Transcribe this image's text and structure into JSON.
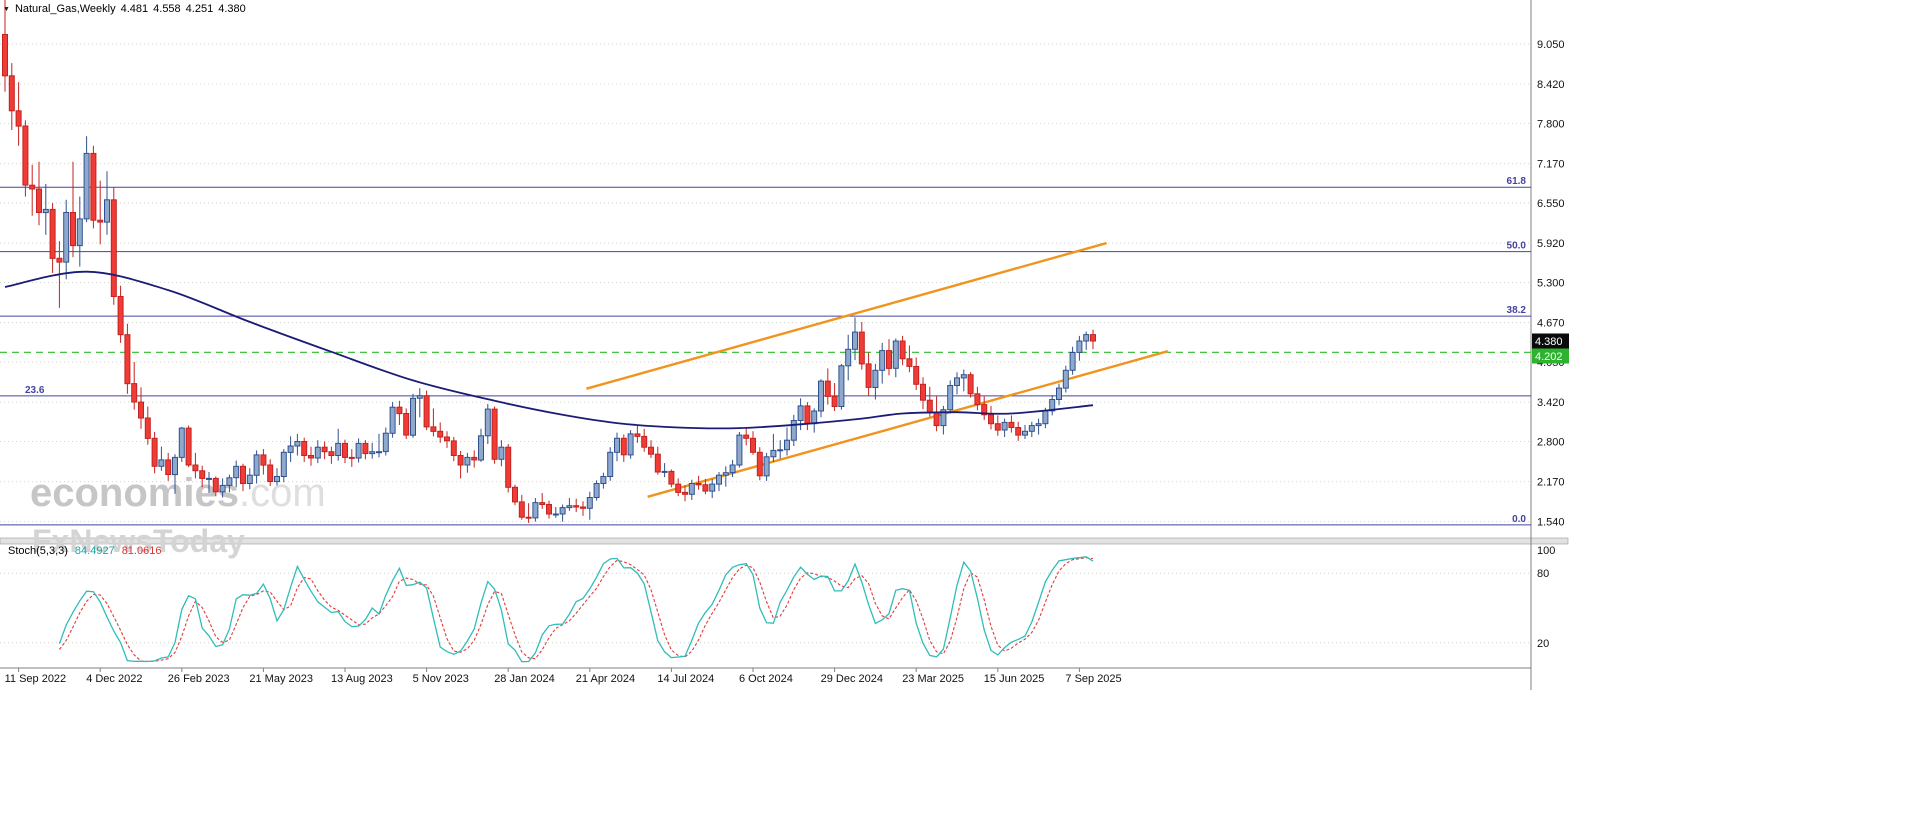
{
  "title": {
    "marker": "▼",
    "symbol_period": "Natural_Gas,Weekly",
    "open": "4.481",
    "high": "4.558",
    "low": "4.251",
    "close": "4.380"
  },
  "watermark": {
    "brand": "economies",
    "brand_suffix": ".com",
    "subbrand": "FxNewsToday"
  },
  "price_axis": {
    "labels": [
      "9.050",
      "8.420",
      "7.800",
      "7.170",
      "6.550",
      "5.920",
      "5.300",
      "4.670",
      "4.050",
      "3.420",
      "2.800",
      "2.170",
      "1.540"
    ],
    "current_price_tag": {
      "text": "4.380",
      "bg": "#0a0a0a",
      "fg": "#ffffff"
    },
    "alert_tag": {
      "text": "4.202",
      "bg": "#2db32d",
      "fg": "#ffffff"
    }
  },
  "time_axis": {
    "labels": [
      {
        "index": 2,
        "text": "11 Sep 2022"
      },
      {
        "index": 14,
        "text": "4 Dec 2022"
      },
      {
        "index": 26,
        "text": "26 Feb 2023"
      },
      {
        "index": 38,
        "text": "21 May 2023"
      },
      {
        "index": 50,
        "text": "13 Aug 2023"
      },
      {
        "index": 62,
        "text": "5 Nov 2023"
      },
      {
        "index": 74,
        "text": "28 Jan 2024"
      },
      {
        "index": 86,
        "text": "21 Apr 2024"
      },
      {
        "index": 98,
        "text": "14 Jul 2024"
      },
      {
        "index": 110,
        "text": "6 Oct 2024"
      },
      {
        "index": 122,
        "text": "29 Dec 2024"
      },
      {
        "index": 134,
        "text": "23 Mar 2025"
      },
      {
        "index": 146,
        "text": "15 Jun 2025"
      },
      {
        "index": 158,
        "text": "7 Sep 2025"
      }
    ]
  },
  "indicator_header": {
    "name": "Stoch(5,3,3)",
    "k_value": "84.4927",
    "d_value": "81.0616"
  },
  "colors": {
    "grid": "#ccd6cc",
    "bull_fill": "#8fa9cc",
    "bull_stroke": "#30508f",
    "bear_fill": "#f03c36",
    "bear_stroke": "#c42220",
    "ma": "#1b1b78",
    "fib": "#4444a0",
    "channel": "#f0941e",
    "alert": "#2db82d",
    "k_line": "#2fbdb8",
    "d_line": "#e23b3b",
    "axis_text": "#111111",
    "watermark_brand": "#c6c6c6",
    "watermark_suffix": "#dedede",
    "watermark_sub": "#d4d4d4"
  },
  "chart_data": {
    "type": "candlestick",
    "symbol": "Natural_Gas",
    "timeframe": "Weekly",
    "title": "Natural_Gas,Weekly 4.481 4.558 4.251 4.380",
    "y_axis": {
      "min": 1.54,
      "max": 9.05,
      "tick_step": 0.625
    },
    "current_price": 4.38,
    "alert_line_price": 4.202,
    "ohlc": [
      [
        9.2,
        10.0,
        8.3,
        8.55
      ],
      [
        8.55,
        8.75,
        7.7,
        8.0
      ],
      [
        8.0,
        8.45,
        7.45,
        7.76
      ],
      [
        7.76,
        7.85,
        6.65,
        6.83
      ],
      [
        6.83,
        7.15,
        6.35,
        6.77
      ],
      [
        6.77,
        7.2,
        6.2,
        6.4
      ],
      [
        6.4,
        6.85,
        6.05,
        6.45
      ],
      [
        6.45,
        6.55,
        5.45,
        5.68
      ],
      [
        5.68,
        5.95,
        4.9,
        5.62
      ],
      [
        5.62,
        6.6,
        5.35,
        6.4
      ],
      [
        6.4,
        7.2,
        5.7,
        5.88
      ],
      [
        5.88,
        6.65,
        5.55,
        6.3
      ],
      [
        6.3,
        7.6,
        6.25,
        7.33
      ],
      [
        7.33,
        7.45,
        6.15,
        6.28
      ],
      [
        6.28,
        6.9,
        5.9,
        6.25
      ],
      [
        6.25,
        7.05,
        6.05,
        6.6
      ],
      [
        6.6,
        6.8,
        4.95,
        5.08
      ],
      [
        5.08,
        5.25,
        4.35,
        4.48
      ],
      [
        4.48,
        4.65,
        3.55,
        3.71
      ],
      [
        3.71,
        4.05,
        3.3,
        3.42
      ],
      [
        3.42,
        3.65,
        3.0,
        3.17
      ],
      [
        3.17,
        3.35,
        2.75,
        2.85
      ],
      [
        2.85,
        2.95,
        2.3,
        2.41
      ],
      [
        2.41,
        2.72,
        2.34,
        2.51
      ],
      [
        2.51,
        2.62,
        2.18,
        2.28
      ],
      [
        2.28,
        2.6,
        1.98,
        2.55
      ],
      [
        2.55,
        3.03,
        2.48,
        3.01
      ],
      [
        3.01,
        3.05,
        2.4,
        2.43
      ],
      [
        2.43,
        2.62,
        2.22,
        2.34
      ],
      [
        2.34,
        2.42,
        2.08,
        2.22
      ],
      [
        2.22,
        2.32,
        1.99,
        2.22
      ],
      [
        2.22,
        2.25,
        1.94,
        2.01
      ],
      [
        2.01,
        2.22,
        1.92,
        2.11
      ],
      [
        2.11,
        2.28,
        2.0,
        2.23
      ],
      [
        2.23,
        2.5,
        2.08,
        2.41
      ],
      [
        2.41,
        2.45,
        2.02,
        2.14
      ],
      [
        2.14,
        2.38,
        2.05,
        2.27
      ],
      [
        2.27,
        2.66,
        2.14,
        2.59
      ],
      [
        2.59,
        2.68,
        2.28,
        2.43
      ],
      [
        2.43,
        2.52,
        2.1,
        2.17
      ],
      [
        2.17,
        2.38,
        2.11,
        2.25
      ],
      [
        2.25,
        2.68,
        2.16,
        2.63
      ],
      [
        2.63,
        2.88,
        2.48,
        2.73
      ],
      [
        2.73,
        2.92,
        2.58,
        2.8
      ],
      [
        2.8,
        2.86,
        2.48,
        2.58
      ],
      [
        2.58,
        2.72,
        2.42,
        2.54
      ],
      [
        2.54,
        2.82,
        2.46,
        2.71
      ],
      [
        2.71,
        2.8,
        2.52,
        2.64
      ],
      [
        2.64,
        2.72,
        2.45,
        2.58
      ],
      [
        2.58,
        3.0,
        2.5,
        2.77
      ],
      [
        2.77,
        2.83,
        2.46,
        2.55
      ],
      [
        2.55,
        2.68,
        2.4,
        2.54
      ],
      [
        2.54,
        2.85,
        2.47,
        2.77
      ],
      [
        2.77,
        2.82,
        2.52,
        2.61
      ],
      [
        2.61,
        2.78,
        2.53,
        2.64
      ],
      [
        2.64,
        2.92,
        2.55,
        2.64
      ],
      [
        2.64,
        3.02,
        2.58,
        2.93
      ],
      [
        2.93,
        3.42,
        2.86,
        3.34
      ],
      [
        3.34,
        3.44,
        3.06,
        3.24
      ],
      [
        3.24,
        3.32,
        2.84,
        2.9
      ],
      [
        2.9,
        3.55,
        2.86,
        3.48
      ],
      [
        3.48,
        3.64,
        3.18,
        3.52
      ],
      [
        3.52,
        3.6,
        2.98,
        3.03
      ],
      [
        3.03,
        3.32,
        2.88,
        2.96
      ],
      [
        2.96,
        3.1,
        2.78,
        2.87
      ],
      [
        2.87,
        2.96,
        2.7,
        2.81
      ],
      [
        2.81,
        2.87,
        2.49,
        2.58
      ],
      [
        2.58,
        2.65,
        2.22,
        2.43
      ],
      [
        2.43,
        2.62,
        2.31,
        2.55
      ],
      [
        2.55,
        2.66,
        2.39,
        2.51
      ],
      [
        2.51,
        3.0,
        2.48,
        2.89
      ],
      [
        2.89,
        3.39,
        2.76,
        3.31
      ],
      [
        3.31,
        3.35,
        2.45,
        2.52
      ],
      [
        2.52,
        2.82,
        2.41,
        2.71
      ],
      [
        2.71,
        2.76,
        2.0,
        2.08
      ],
      [
        2.08,
        2.12,
        1.8,
        1.85
      ],
      [
        1.85,
        1.96,
        1.57,
        1.61
      ],
      [
        1.61,
        1.83,
        1.52,
        1.6
      ],
      [
        1.6,
        1.91,
        1.54,
        1.84
      ],
      [
        1.84,
        1.99,
        1.74,
        1.81
      ],
      [
        1.81,
        1.87,
        1.59,
        1.66
      ],
      [
        1.66,
        1.77,
        1.6,
        1.66
      ],
      [
        1.66,
        1.81,
        1.54,
        1.76
      ],
      [
        1.76,
        1.91,
        1.71,
        1.79
      ],
      [
        1.79,
        1.9,
        1.69,
        1.77
      ],
      [
        1.77,
        1.86,
        1.63,
        1.75
      ],
      [
        1.75,
        2.01,
        1.57,
        1.92
      ],
      [
        1.92,
        2.19,
        1.87,
        2.14
      ],
      [
        2.14,
        2.31,
        2.06,
        2.25
      ],
      [
        2.25,
        2.71,
        2.18,
        2.63
      ],
      [
        2.63,
        2.94,
        2.49,
        2.85
      ],
      [
        2.85,
        2.91,
        2.48,
        2.59
      ],
      [
        2.59,
        2.98,
        2.53,
        2.92
      ],
      [
        2.92,
        3.06,
        2.78,
        2.88
      ],
      [
        2.88,
        3.0,
        2.64,
        2.71
      ],
      [
        2.71,
        2.82,
        2.54,
        2.6
      ],
      [
        2.6,
        2.72,
        2.28,
        2.32
      ],
      [
        2.32,
        2.46,
        2.24,
        2.33
      ],
      [
        2.33,
        2.36,
        2.08,
        2.13
      ],
      [
        2.13,
        2.22,
        1.94,
        2.0
      ],
      [
        2.0,
        2.11,
        1.86,
        1.97
      ],
      [
        1.97,
        2.2,
        1.88,
        2.14
      ],
      [
        2.14,
        2.26,
        2.04,
        2.12
      ],
      [
        2.12,
        2.21,
        1.97,
        2.02
      ],
      [
        2.02,
        2.21,
        1.91,
        2.13
      ],
      [
        2.13,
        2.32,
        2.02,
        2.27
      ],
      [
        2.27,
        2.41,
        2.09,
        2.31
      ],
      [
        2.31,
        2.51,
        2.24,
        2.43
      ],
      [
        2.43,
        2.95,
        2.39,
        2.9
      ],
      [
        2.9,
        3.02,
        2.74,
        2.85
      ],
      [
        2.85,
        2.96,
        2.59,
        2.63
      ],
      [
        2.63,
        2.71,
        2.19,
        2.26
      ],
      [
        2.26,
        2.62,
        2.18,
        2.56
      ],
      [
        2.56,
        2.92,
        2.48,
        2.66
      ],
      [
        2.66,
        2.82,
        2.53,
        2.67
      ],
      [
        2.67,
        3.02,
        2.58,
        2.82
      ],
      [
        2.82,
        3.22,
        2.73,
        3.13
      ],
      [
        3.13,
        3.48,
        2.98,
        3.36
      ],
      [
        3.36,
        3.42,
        2.98,
        3.08
      ],
      [
        3.08,
        3.32,
        2.94,
        3.28
      ],
      [
        3.28,
        3.78,
        3.18,
        3.75
      ],
      [
        3.75,
        3.95,
        3.38,
        3.51
      ],
      [
        3.51,
        3.72,
        3.28,
        3.35
      ],
      [
        3.35,
        4.02,
        3.3,
        3.99
      ],
      [
        3.99,
        4.48,
        3.76,
        4.25
      ],
      [
        4.25,
        4.75,
        4.08,
        4.52
      ],
      [
        4.52,
        4.68,
        3.93,
        4.02
      ],
      [
        4.02,
        4.2,
        3.52,
        3.65
      ],
      [
        3.65,
        4.02,
        3.46,
        3.92
      ],
      [
        3.92,
        4.35,
        3.71,
        4.23
      ],
      [
        4.23,
        4.41,
        3.84,
        3.95
      ],
      [
        3.95,
        4.42,
        3.81,
        4.38
      ],
      [
        4.38,
        4.46,
        4.0,
        4.1
      ],
      [
        4.1,
        4.31,
        3.89,
        3.98
      ],
      [
        3.98,
        4.12,
        3.61,
        3.7
      ],
      [
        3.7,
        3.81,
        3.31,
        3.45
      ],
      [
        3.45,
        3.66,
        3.19,
        3.25
      ],
      [
        3.25,
        3.51,
        2.96,
        3.05
      ],
      [
        3.05,
        3.36,
        2.91,
        3.3
      ],
      [
        3.3,
        3.76,
        3.24,
        3.68
      ],
      [
        3.68,
        3.89,
        3.54,
        3.8
      ],
      [
        3.8,
        3.93,
        3.59,
        3.85
      ],
      [
        3.85,
        3.89,
        3.49,
        3.55
      ],
      [
        3.55,
        3.66,
        3.29,
        3.38
      ],
      [
        3.38,
        3.51,
        3.14,
        3.22
      ],
      [
        3.22,
        3.36,
        2.99,
        3.08
      ],
      [
        3.08,
        3.21,
        2.89,
        2.98
      ],
      [
        2.98,
        3.16,
        2.87,
        3.1
      ],
      [
        3.1,
        3.21,
        2.94,
        3.02
      ],
      [
        3.02,
        3.11,
        2.81,
        2.9
      ],
      [
        2.9,
        3.06,
        2.84,
        2.96
      ],
      [
        2.96,
        3.11,
        2.87,
        3.05
      ],
      [
        3.05,
        3.16,
        2.91,
        3.08
      ],
      [
        3.08,
        3.33,
        3.01,
        3.28
      ],
      [
        3.28,
        3.53,
        3.21,
        3.46
      ],
      [
        3.46,
        3.71,
        3.37,
        3.64
      ],
      [
        3.64,
        3.99,
        3.57,
        3.92
      ],
      [
        3.92,
        4.29,
        3.85,
        4.2
      ],
      [
        4.2,
        4.46,
        4.07,
        4.38
      ],
      [
        4.38,
        4.53,
        4.24,
        4.481
      ],
      [
        4.481,
        4.558,
        4.251,
        4.38
      ]
    ],
    "moving_average_points": [
      [
        0,
        5.23
      ],
      [
        12,
        5.47
      ],
      [
        24,
        5.18
      ],
      [
        36,
        4.68
      ],
      [
        48,
        4.21
      ],
      [
        60,
        3.76
      ],
      [
        72,
        3.44
      ],
      [
        82,
        3.22
      ],
      [
        90,
        3.09
      ],
      [
        99,
        3.02
      ],
      [
        108,
        3.01
      ],
      [
        117,
        3.07
      ],
      [
        126,
        3.16
      ],
      [
        132,
        3.24
      ],
      [
        140,
        3.26
      ],
      [
        148,
        3.24
      ],
      [
        160,
        3.37
      ]
    ],
    "fibonacci_levels": [
      {
        "label": "61.8",
        "price": 6.798,
        "label_side": "right"
      },
      {
        "label": "50.0",
        "price": 5.785,
        "label_side": "right"
      },
      {
        "label": "38.2",
        "price": 4.772,
        "label_side": "right"
      },
      {
        "label": "23.6",
        "price": 3.517,
        "label_side": "left"
      },
      {
        "label": "0.0",
        "price": 1.49,
        "label_side": "right"
      }
    ],
    "channel_lines": [
      {
        "i1": 94.5,
        "p1": 1.93,
        "i2": 171,
        "p2": 4.22
      },
      {
        "i1": 85.5,
        "p1": 3.63,
        "i2": 162,
        "p2": 5.92
      }
    ],
    "oscillator": {
      "type": "stochastic",
      "params": "5,3,3",
      "k": 84.4927,
      "d": 81.0616,
      "levels": [
        "100",
        "80",
        "20"
      ],
      "level_values": [
        100,
        80,
        20
      ]
    }
  }
}
